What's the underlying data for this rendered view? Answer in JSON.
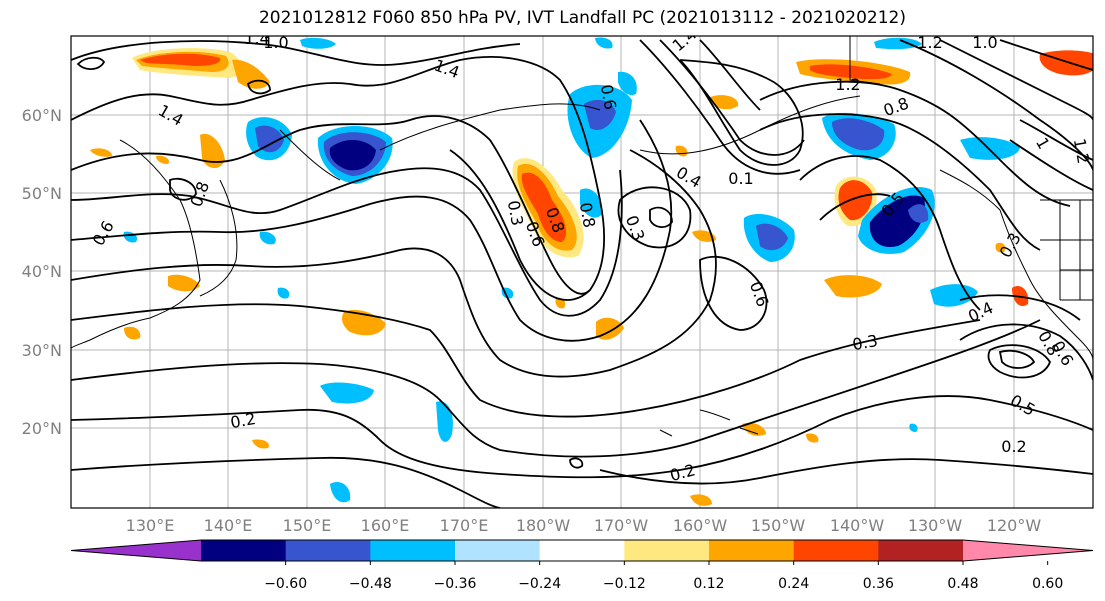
{
  "title": "2021012812 F060 850 hPa PV, IVT Landfall PC (2021013112 - 2021020212)",
  "map": {
    "lat_labels": [
      "60°N",
      "50°N",
      "40°N",
      "30°N",
      "20°N"
    ],
    "lon_labels": [
      "130°E",
      "140°E",
      "150°E",
      "160°E",
      "170°E",
      "180°W",
      "170°W",
      "160°W",
      "150°W",
      "140°W",
      "130°W",
      "120°W"
    ],
    "contour_labels": [
      "1.0",
      "1.4",
      "1.4",
      "1.4",
      "1.2",
      "1.0",
      "0.6",
      "0.6",
      "1.4",
      "1.2",
      "0.8",
      "1",
      "0.1",
      "0.4",
      "0.8",
      "0.3",
      "0.6",
      "0.5",
      "0.3",
      "0.3",
      "0.4",
      "0.5",
      "0.2",
      "0.2",
      "0.2",
      "0.8",
      "0.6",
      "1.2",
      "0.8",
      "0.3",
      "0.6",
      "0.8"
    ],
    "shading": [
      {
        "value": 0.36,
        "color": "#ff4500",
        "lon": 143,
        "lat": 64
      },
      {
        "value": 0.24,
        "color": "#ffa500",
        "lon": 153,
        "lat": 63
      },
      {
        "value": -0.48,
        "color": "#000080",
        "lon": 157,
        "lat": 54
      },
      {
        "value": -0.36,
        "color": "#3655cf",
        "lon": 146,
        "lat": 56
      },
      {
        "value": -0.24,
        "color": "#00bfff",
        "lon": 190,
        "lat": 58
      },
      {
        "value": 0.36,
        "color": "#ff4500",
        "lon": 180,
        "lat": 46
      },
      {
        "value": -0.36,
        "color": "#3655cf",
        "lon": 211,
        "lat": 41
      },
      {
        "value": -0.48,
        "color": "#000080",
        "lon": 225,
        "lat": 44
      },
      {
        "value": 0.36,
        "color": "#ff4500",
        "lon": 219,
        "lat": 48
      },
      {
        "value": 0.36,
        "color": "#ff4500",
        "lon": 228,
        "lat": 64
      },
      {
        "value": -0.36,
        "color": "#3655cf",
        "lon": 220,
        "lat": 57
      },
      {
        "value": 0.24,
        "color": "#ffa500",
        "lon": 158,
        "lat": 34
      }
    ]
  },
  "colorbar": {
    "ticks": [
      "−0.60",
      "−0.48",
      "−0.36",
      "−0.24",
      "−0.12",
      "0.12",
      "0.24",
      "0.36",
      "0.48",
      "0.60"
    ],
    "colors": [
      "#9932cc",
      "#000080",
      "#3655cf",
      "#00bfff",
      "#afe3ff",
      "#ffffff",
      "#ffe880",
      "#ffa500",
      "#ff4500",
      "#b22222",
      "#ff88ab"
    ]
  }
}
